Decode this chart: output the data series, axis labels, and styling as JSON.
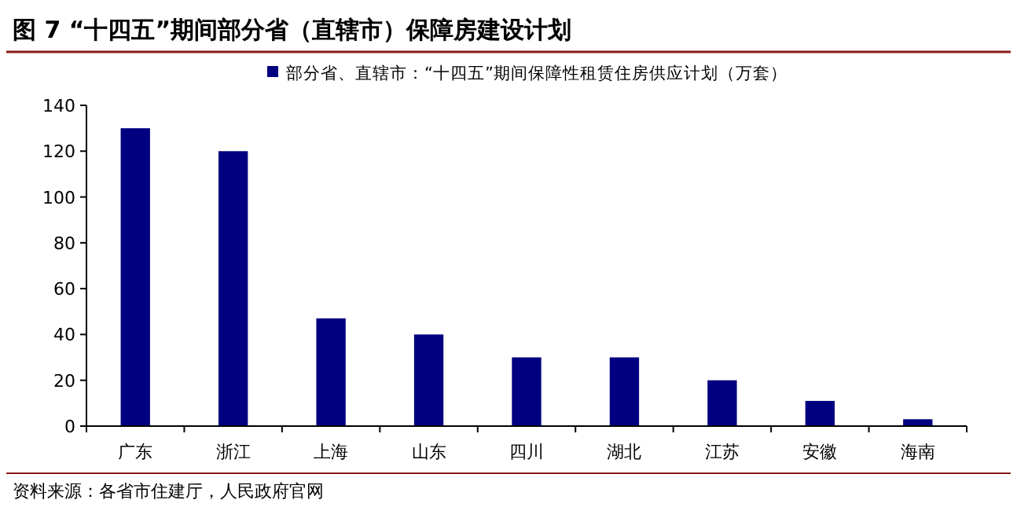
{
  "chart_data": {
    "type": "bar",
    "title": "图 7 “十四五”期间部分省（直辖市）保障房建设计划",
    "categories": [
      "广东",
      "浙江",
      "上海",
      "山东",
      "四川",
      "湖北",
      "江苏",
      "安徽",
      "海南"
    ],
    "series": [
      {
        "name": "部分省、直辖市：“十四五”期间保障性租赁住房供应计划（万套）",
        "color": "#000080",
        "values": [
          130,
          120,
          47,
          40,
          30,
          30,
          20,
          11,
          3
        ]
      }
    ],
    "ylim": [
      0,
      140
    ],
    "yticks": [
      0,
      20,
      40,
      60,
      80,
      100,
      120,
      140
    ],
    "grid": false,
    "legend": "top",
    "annotations": [
      "资料来源：各省市住建厅，人民政府官网"
    ]
  }
}
